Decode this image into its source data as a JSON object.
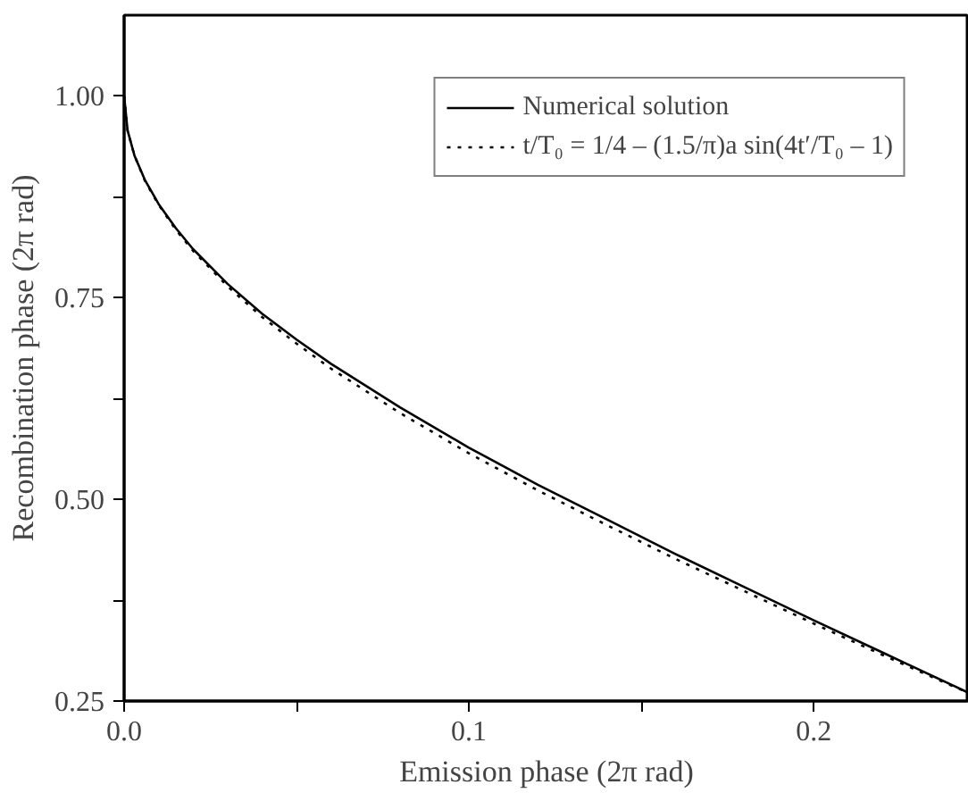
{
  "chart_data": {
    "type": "line",
    "xlabel": "Emission phase (2π rad)",
    "ylabel": "Recombination phase (2π rad)",
    "xlim": [
      0,
      0.245
    ],
    "ylim": [
      0.25,
      1.1
    ],
    "xticks": [
      {
        "value": 0,
        "label": "0.0"
      },
      {
        "value": 0.05,
        "label": null
      },
      0.1,
      {
        "value": 0.15,
        "label": null
      },
      0.2
    ],
    "yticks": [
      {
        "value": 0.25,
        "label": "0.25"
      },
      {
        "value": 0.375,
        "label": null
      },
      {
        "value": 0.5,
        "label": "0.50"
      },
      {
        "value": 0.625,
        "label": null
      },
      0.75,
      {
        "value": 0.875,
        "label": null
      },
      {
        "value": 1,
        "label": "1.00"
      }
    ],
    "x": [
      0,
      0.001,
      0.003,
      0.006,
      0.01,
      0.015,
      0.02,
      0.03,
      0.04,
      0.05,
      0.06,
      0.08,
      0.1,
      0.12,
      0.14,
      0.16,
      0.18,
      0.2,
      0.22,
      0.24,
      0.245
    ],
    "series": [
      {
        "name": "Numerical solution",
        "color": "#000000",
        "line_style": "solid",
        "values": [
          1.0,
          0.957,
          0.926,
          0.896,
          0.866,
          0.836,
          0.81,
          0.767,
          0.73,
          0.698,
          0.668,
          0.614,
          0.564,
          0.518,
          0.475,
          0.432,
          0.391,
          0.35,
          0.31,
          0.27,
          0.26
        ]
      },
      {
        "name": "t/T₀ = 1/4 – (1.5/π)a sin(4t′/T₀ – 1)",
        "color": "#000000",
        "line_style": "dotted",
        "values": [
          1.0,
          0.957,
          0.926,
          0.895,
          0.865,
          0.834,
          0.808,
          0.764,
          0.726,
          0.693,
          0.662,
          0.607,
          0.557,
          0.511,
          0.468,
          0.426,
          0.386,
          0.346,
          0.307,
          0.269,
          0.26
        ]
      }
    ],
    "legend": "top right",
    "grid": false
  }
}
